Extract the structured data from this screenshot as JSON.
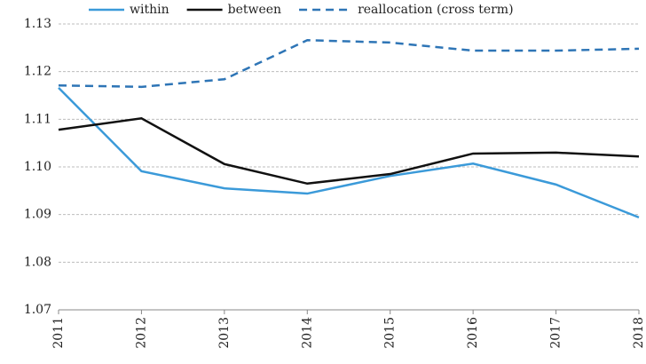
{
  "chart_data": {
    "type": "line",
    "categories": [
      "2011",
      "2012",
      "2013",
      "2014",
      "2015",
      "2016",
      "2017",
      "2018"
    ],
    "series": [
      {
        "name": "within",
        "color": "#3b9ad9",
        "dashed": false,
        "values": [
          1.1166,
          1.0991,
          1.0955,
          1.0944,
          1.0981,
          1.1007,
          1.0963,
          1.0894
        ]
      },
      {
        "name": "between",
        "color": "#111111",
        "dashed": false,
        "values": [
          1.1078,
          1.1102,
          1.1006,
          1.0965,
          1.0985,
          1.1028,
          1.103,
          1.1022
        ]
      },
      {
        "name": "reallocation (cross term)",
        "color": "#2e75b6",
        "dashed": true,
        "values": [
          1.1171,
          1.1168,
          1.1184,
          1.1266,
          1.1261,
          1.1244,
          1.1244,
          1.1248
        ]
      }
    ],
    "ylim": [
      1.07,
      1.13
    ],
    "yticks": [
      1.07,
      1.08,
      1.09,
      {
        "value": 1.1,
        "label": "1.10"
      },
      1.11,
      1.12,
      1.13
    ],
    "grid": true,
    "legend": "top"
  }
}
